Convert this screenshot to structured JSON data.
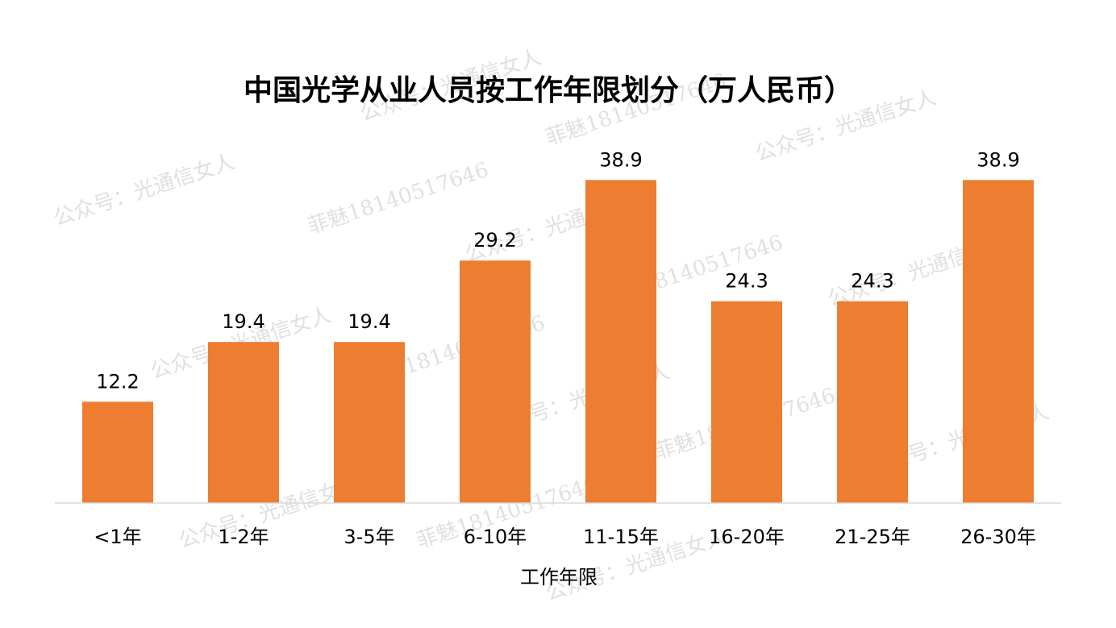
{
  "chart_data": {
    "type": "bar",
    "title": "中国光学从业人员按工作年限划分（万人民币）",
    "xlabel": "工作年限",
    "ylabel": "",
    "categories": [
      "<1年",
      "1-2年",
      "3-5年",
      "6-10年",
      "11-15年",
      "16-20年",
      "21-25年",
      "26-30年"
    ],
    "values": [
      12.2,
      19.4,
      19.4,
      29.2,
      38.9,
      24.3,
      24.3,
      38.9
    ],
    "value_labels": [
      "12.2",
      "19.4",
      "19.4",
      "29.2",
      "38.9",
      "24.3",
      "24.3",
      "38.9"
    ],
    "ylim": [
      0,
      40
    ],
    "grid": false,
    "legend": "none",
    "bar_color": "#ED7D31",
    "axis_color": "#d9d9d9"
  },
  "watermarks": [
    "公众号：光通信女人",
    "菲魅18140517646"
  ]
}
